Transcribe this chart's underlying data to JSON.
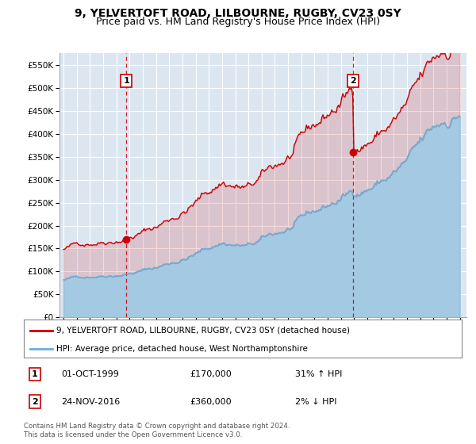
{
  "title": "9, YELVERTOFT ROAD, LILBOURNE, RUGBY, CV23 0SY",
  "subtitle": "Price paid vs. HM Land Registry's House Price Index (HPI)",
  "property_label": "9, YELVERTOFT ROAD, LILBOURNE, RUGBY, CV23 0SY (detached house)",
  "hpi_label": "HPI: Average price, detached house, West Northamptonshire",
  "footnote": "Contains HM Land Registry data © Crown copyright and database right 2024.\nThis data is licensed under the Open Government Licence v3.0.",
  "sale1": {
    "num": "1",
    "date": "01-OCT-1999",
    "price": "£170,000",
    "hpi_change": "31% ↑ HPI"
  },
  "sale2": {
    "num": "2",
    "date": "24-NOV-2016",
    "price": "£360,000",
    "hpi_change": "2% ↓ HPI"
  },
  "sale1_year": 1999.75,
  "sale1_price": 170000,
  "sale2_year": 2016.917,
  "sale2_price": 360000,
  "ylim": [
    0,
    575000
  ],
  "xlim_start": 1994.7,
  "xlim_end": 2025.5,
  "bg_color": "#dce6f1",
  "red_color": "#cc0000",
  "blue_color": "#6baed6",
  "grid_color": "#ffffff",
  "title_fontsize": 10,
  "subtitle_fontsize": 9
}
